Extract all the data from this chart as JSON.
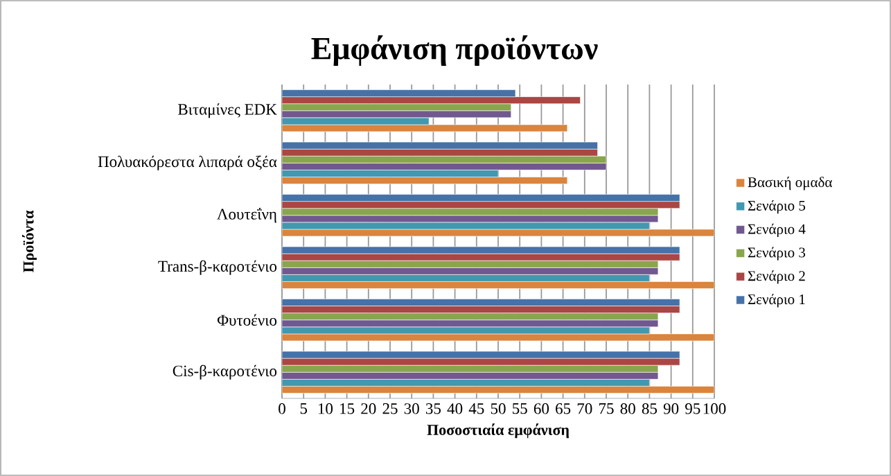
{
  "chart_data": {
    "type": "bar",
    "orientation": "horizontal",
    "title": "Εμφάνιση προϊόντων",
    "xlabel": "Ποσοστιαία εμφάνιση",
    "ylabel": "Προϊόντα",
    "categories": [
      "Βιταμίνες EDK",
      "Πολυακόρεστα λιπαρά οξέα",
      "Λουτεΐνη",
      "Trans-β-καροτένιο",
      "Φυτοένιο",
      "Cis-β-καροτένιο"
    ],
    "series": [
      {
        "name": "Βασική ομαδα",
        "color": "#db843d",
        "values": [
          66,
          66,
          100,
          100,
          100,
          100
        ]
      },
      {
        "name": "Σενάριο 5",
        "color": "#4198af",
        "values": [
          34,
          50,
          85,
          85,
          85,
          85
        ]
      },
      {
        "name": "Σενάριο 4",
        "color": "#71588f",
        "values": [
          53,
          75,
          87,
          87,
          87,
          87
        ]
      },
      {
        "name": "Σενάριο 3",
        "color": "#89a54e",
        "values": [
          53,
          75,
          87,
          87,
          87,
          87
        ]
      },
      {
        "name": "Σενάριο 2",
        "color": "#aa4643",
        "values": [
          69,
          73,
          92,
          92,
          92,
          92
        ]
      },
      {
        "name": "Σενάριο 1",
        "color": "#4572a7",
        "values": [
          54,
          73,
          92,
          92,
          92,
          92
        ]
      }
    ],
    "xlim": [
      0,
      100
    ],
    "xticks": [
      0,
      5,
      10,
      15,
      20,
      25,
      30,
      35,
      40,
      45,
      50,
      55,
      60,
      65,
      70,
      75,
      80,
      85,
      90,
      95,
      100
    ],
    "grid": "x",
    "legend": "right"
  }
}
